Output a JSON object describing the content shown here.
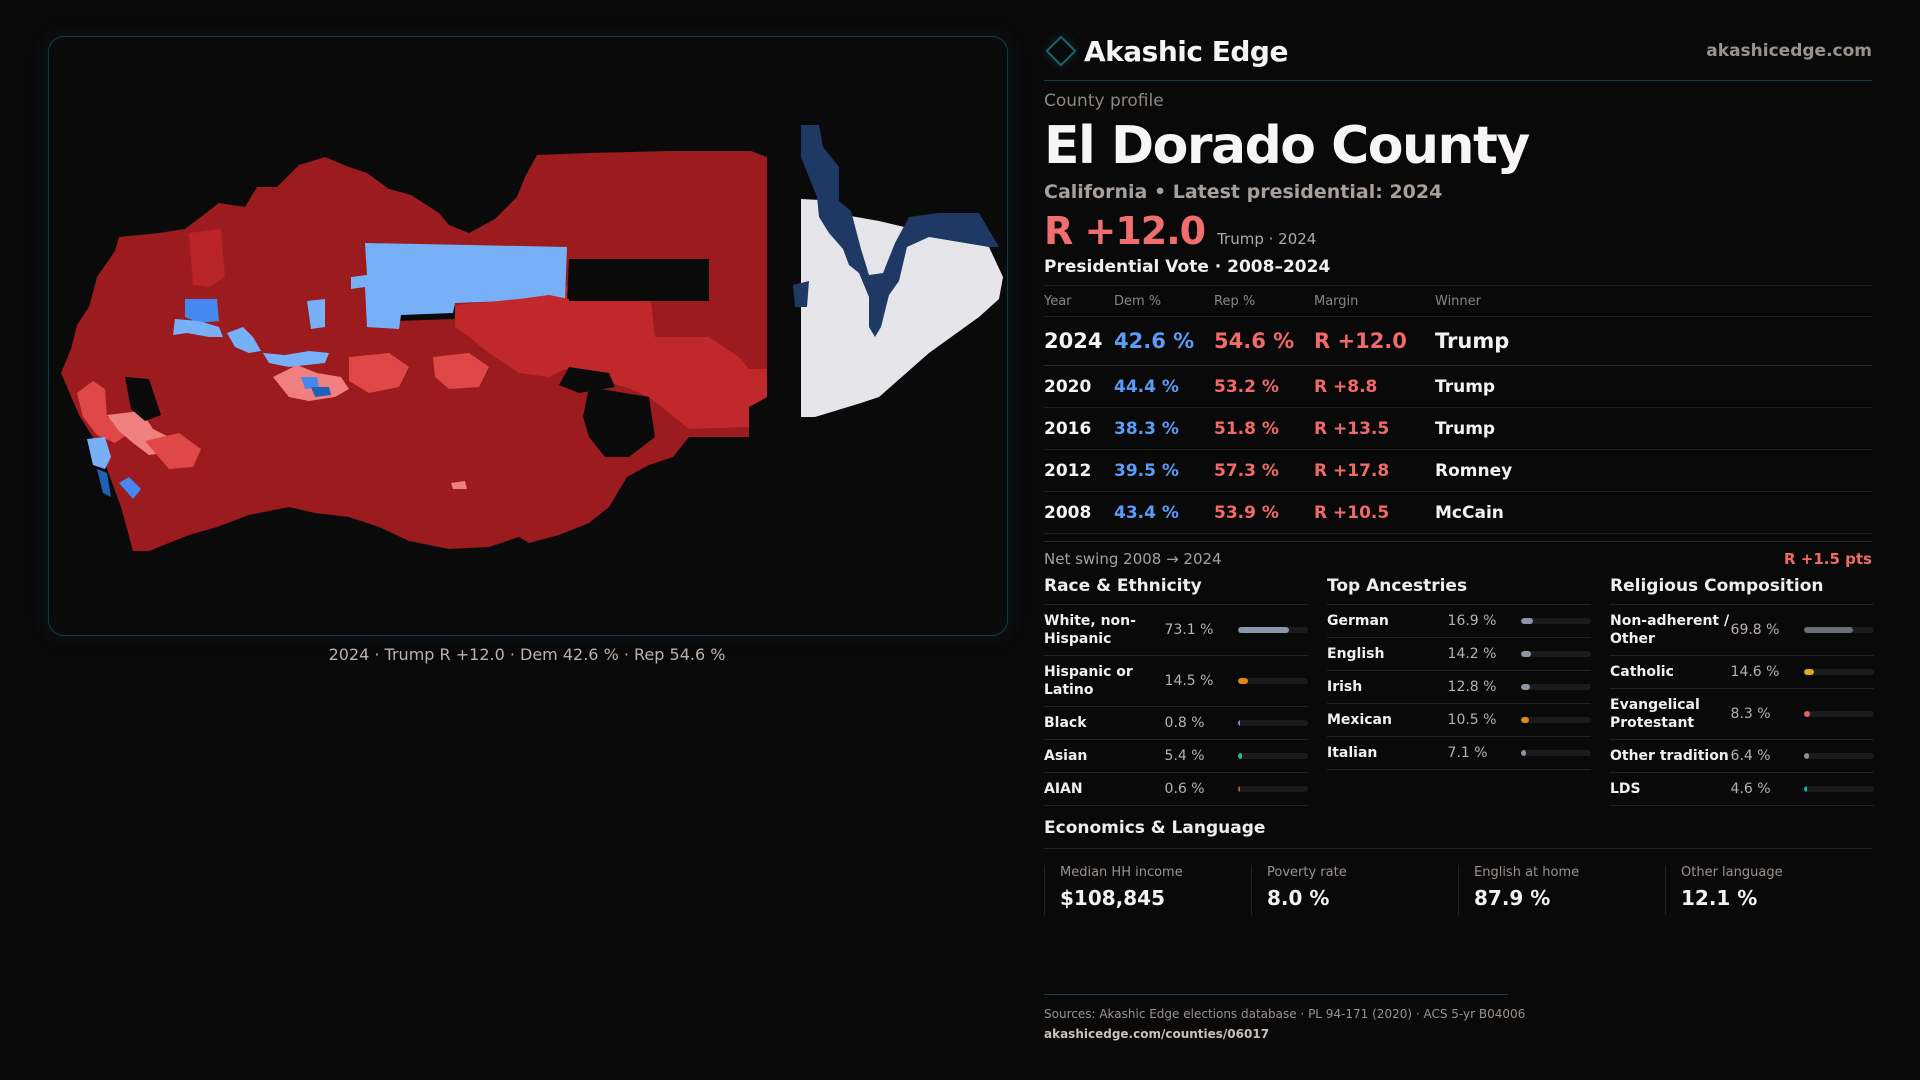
{
  "brand": {
    "name": "Akashic Edge",
    "url": "akashicedge.com",
    "logo_icon": "diamond-icon"
  },
  "header": {
    "kicker": "County profile",
    "title": "El Dorado County",
    "subtitle": "California • Latest presidential: 2024",
    "margin": "R +12.0",
    "margin_sub": "Trump · 2024"
  },
  "colors": {
    "accent": "#1b6470",
    "dem": "#5a9cf8",
    "rep": "#f06a6a",
    "map_strong_rep": "#9b1b1f",
    "map_rep": "#c0282c",
    "map_lean_rep": "#e04848",
    "map_tilt_rep": "#f08080",
    "map_tilt_dem": "#78b0f8",
    "map_lean_dem": "#4488f0",
    "map_dem": "#2060b8",
    "map_strong_dem": "#1e3a64",
    "map_no_data": "#e6e6ea"
  },
  "map": {
    "caption": "2024 · Trump R +12.0 · Dem 42.6 % · Rep 54.6 %"
  },
  "presidential": {
    "title": "Presidential Vote · 2008–2024",
    "columns": [
      "Year",
      "Dem %",
      "Rep %",
      "Margin",
      "Winner"
    ],
    "rows": [
      {
        "year": "2024",
        "dem": "42.6 %",
        "rep": "54.6 %",
        "margin": "R +12.0",
        "winner": "Trump"
      },
      {
        "year": "2020",
        "dem": "44.4 %",
        "rep": "53.2 %",
        "margin": "R +8.8",
        "winner": "Trump"
      },
      {
        "year": "2016",
        "dem": "38.3 %",
        "rep": "51.8 %",
        "margin": "R +13.5",
        "winner": "Trump"
      },
      {
        "year": "2012",
        "dem": "39.5 %",
        "rep": "57.3 %",
        "margin": "R +17.8",
        "winner": "Romney"
      },
      {
        "year": "2008",
        "dem": "43.4 %",
        "rep": "53.9 %",
        "margin": "R +10.5",
        "winner": "McCain"
      }
    ],
    "swing_label": "Net swing 2008 → 2024",
    "swing_value": "R +1.5 pts"
  },
  "demographics": {
    "race": {
      "title": "Race & Ethnicity",
      "items": [
        {
          "label": "White, non-Hispanic",
          "value": "73.1 %",
          "pct": 73.1,
          "color": "#8a95a8"
        },
        {
          "label": "Hispanic or Latino",
          "value": "14.5 %",
          "pct": 14.5,
          "color": "#e08a10"
        },
        {
          "label": "Black",
          "value": "0.8 %",
          "pct": 0.8,
          "color": "#9a7cf0"
        },
        {
          "label": "Asian",
          "value": "5.4 %",
          "pct": 5.4,
          "color": "#20c080"
        },
        {
          "label": "AIAN",
          "value": "0.6 %",
          "pct": 0.6,
          "color": "#c06020"
        }
      ]
    },
    "ancestry": {
      "title": "Top Ancestries",
      "items": [
        {
          "label": "German",
          "value": "16.9 %",
          "pct": 16.9,
          "color": "#8a95a8"
        },
        {
          "label": "English",
          "value": "14.2 %",
          "pct": 14.2,
          "color": "#8a95a8"
        },
        {
          "label": "Irish",
          "value": "12.8 %",
          "pct": 12.8,
          "color": "#8a95a8"
        },
        {
          "label": "Mexican",
          "value": "10.5 %",
          "pct": 10.5,
          "color": "#e08a10"
        },
        {
          "label": "Italian",
          "value": "7.1 %",
          "pct": 7.1,
          "color": "#8a95a8"
        }
      ]
    },
    "religion": {
      "title": "Religious Composition",
      "items": [
        {
          "label": "Non-adherent / Other",
          "value": "69.8 %",
          "pct": 69.8,
          "color": "#6a6f7a"
        },
        {
          "label": "Catholic",
          "value": "14.6 %",
          "pct": 14.6,
          "color": "#e0a820"
        },
        {
          "label": "Evangelical Protestant",
          "value": "8.3 %",
          "pct": 8.3,
          "color": "#e06060"
        },
        {
          "label": "Other tradition",
          "value": "6.4 %",
          "pct": 6.4,
          "color": "#8a8f9a"
        },
        {
          "label": "LDS",
          "value": "4.6 %",
          "pct": 4.6,
          "color": "#20b0a0"
        }
      ]
    }
  },
  "economics": {
    "title": "Economics & Language",
    "cards": [
      {
        "label": "Median HH income",
        "value": "$108,845"
      },
      {
        "label": "Poverty rate",
        "value": "8.0 %"
      },
      {
        "label": "English at home",
        "value": "87.9 %"
      },
      {
        "label": "Other language",
        "value": "12.1 %"
      }
    ]
  },
  "footer": {
    "sources": "Sources: Akashic Edge elections database · PL 94-171 (2020) · ACS 5-yr B04006",
    "url": "akashicedge.com/counties/06017"
  }
}
